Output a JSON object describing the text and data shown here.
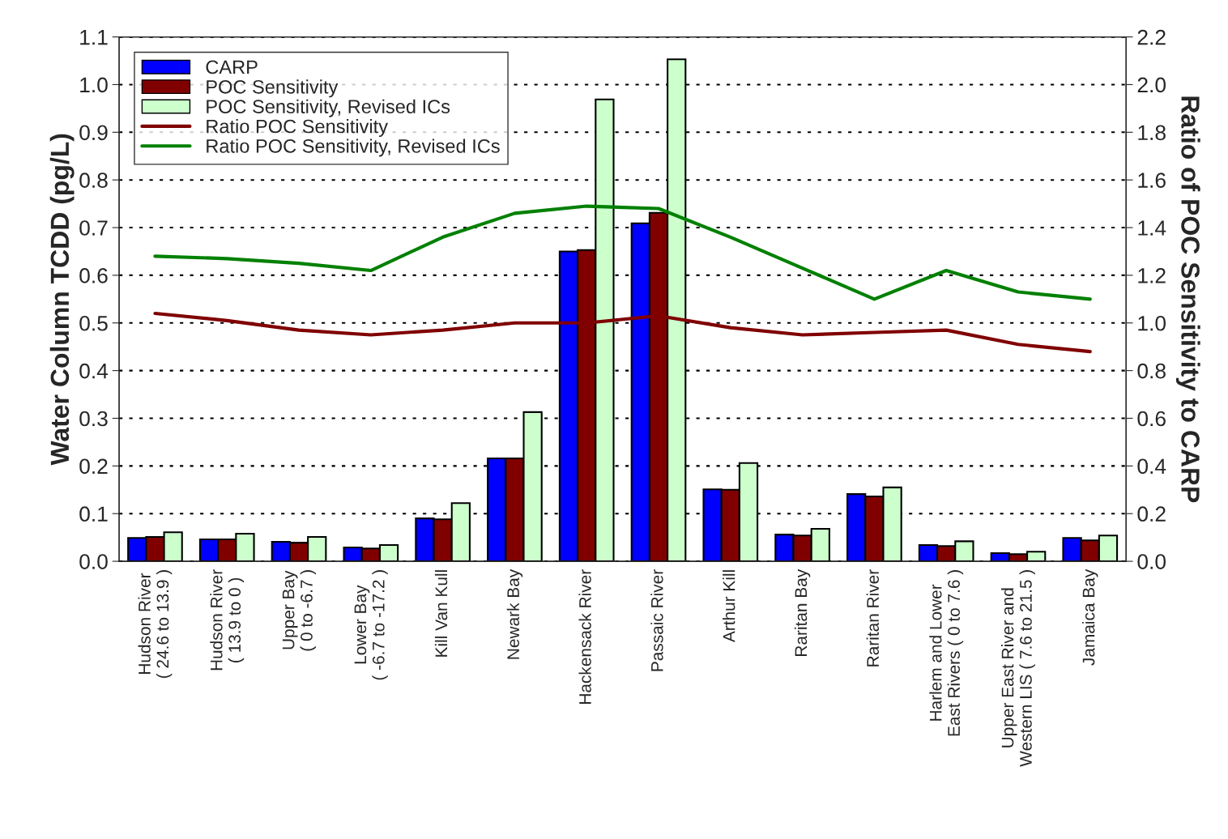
{
  "chart_data": {
    "type": "bar",
    "ylabel": "Water Column TCDD (pg/L)",
    "y2label": "Ratio of POC Sensitivity to CARP",
    "categories": [
      "Hudson River\n( 24.6 to 13.9 )",
      "Hudson River\n( 13.9 to 0 )",
      "Upper Bay\n( 0 to -6.7 )",
      "Lower Bay\n( -6.7 to -17.2 )",
      "Kill Van Kull",
      "Newark Bay",
      "Hackensack River",
      "Passaic River",
      "Arthur Kill",
      "Raritan Bay",
      "Raritan River",
      "Harlem and Lower\nEast Rivers ( 0 to 7.6 )",
      "Upper East River and\nWestern LIS ( 7.6 to 21.5 )",
      "Jamaica Bay"
    ],
    "series": [
      {
        "name": "CARP",
        "color": "#0000ff",
        "values": [
          0.049,
          0.046,
          0.041,
          0.029,
          0.09,
          0.216,
          0.65,
          0.709,
          0.151,
          0.056,
          0.141,
          0.034,
          0.017,
          0.049
        ]
      },
      {
        "name": "POC Sensitivity",
        "color": "#800000",
        "values": [
          0.051,
          0.046,
          0.039,
          0.027,
          0.088,
          0.216,
          0.653,
          0.731,
          0.15,
          0.054,
          0.136,
          0.032,
          0.015,
          0.044
        ]
      },
      {
        "name": "POC Sensitivity, Revised ICs",
        "color": "#ccffcc",
        "values": [
          0.061,
          0.058,
          0.051,
          0.034,
          0.122,
          0.313,
          0.969,
          1.053,
          0.206,
          0.068,
          0.155,
          0.042,
          0.02,
          0.054
        ]
      },
      {
        "name": "Ratio POC Sensitivity",
        "type": "line",
        "axis": "y2",
        "color": "#800000",
        "values": [
          1.04,
          1.01,
          0.97,
          0.95,
          0.97,
          1.0,
          1.0,
          1.03,
          0.98,
          0.95,
          0.96,
          0.97,
          0.91,
          0.88
        ]
      },
      {
        "name": "Ratio POC Sensitivity, Revised ICs",
        "type": "line",
        "axis": "y2",
        "color": "#008000",
        "values": [
          1.28,
          1.27,
          1.25,
          1.22,
          1.36,
          1.46,
          1.49,
          1.48,
          1.36,
          1.23,
          1.1,
          1.22,
          1.13,
          1.1
        ]
      }
    ],
    "ylim": [
      0,
      1.1
    ],
    "yticks": [
      {
        "value": 0,
        "label": "0.0"
      },
      {
        "value": 0.1,
        "label": "0.1"
      },
      {
        "value": 0.2,
        "label": "0.2"
      },
      {
        "value": 0.3,
        "label": "0.3"
      },
      {
        "value": 0.4,
        "label": "0.4"
      },
      {
        "value": 0.5,
        "label": "0.5"
      },
      {
        "value": 0.6,
        "label": "0.6"
      },
      {
        "value": 0.7,
        "label": "0.7"
      },
      {
        "value": 0.8,
        "label": "0.8"
      },
      {
        "value": 0.9,
        "label": "0.9"
      },
      {
        "value": 1.0,
        "label": "1.0"
      },
      {
        "value": 1.1,
        "label": "1.1"
      }
    ],
    "y2lim": [
      0,
      2.2
    ],
    "y2ticks": [
      {
        "value": 0,
        "label": "0.0"
      },
      {
        "value": 0.2,
        "label": "0.2"
      },
      {
        "value": 0.4,
        "label": "0.4"
      },
      {
        "value": 0.6,
        "label": "0.6"
      },
      {
        "value": 0.8,
        "label": "0.8"
      },
      {
        "value": 1.0,
        "label": "1.0"
      },
      {
        "value": 1.2,
        "label": "1.2"
      },
      {
        "value": 1.4,
        "label": "1.4"
      },
      {
        "value": 1.6,
        "label": "1.6"
      },
      {
        "value": 1.8,
        "label": "1.8"
      },
      {
        "value": 2.0,
        "label": "2.0"
      },
      {
        "value": 2.2,
        "label": "2.2"
      }
    ],
    "grid": "y",
    "legend": "top left",
    "line_style": "solid",
    "marker": "none"
  }
}
